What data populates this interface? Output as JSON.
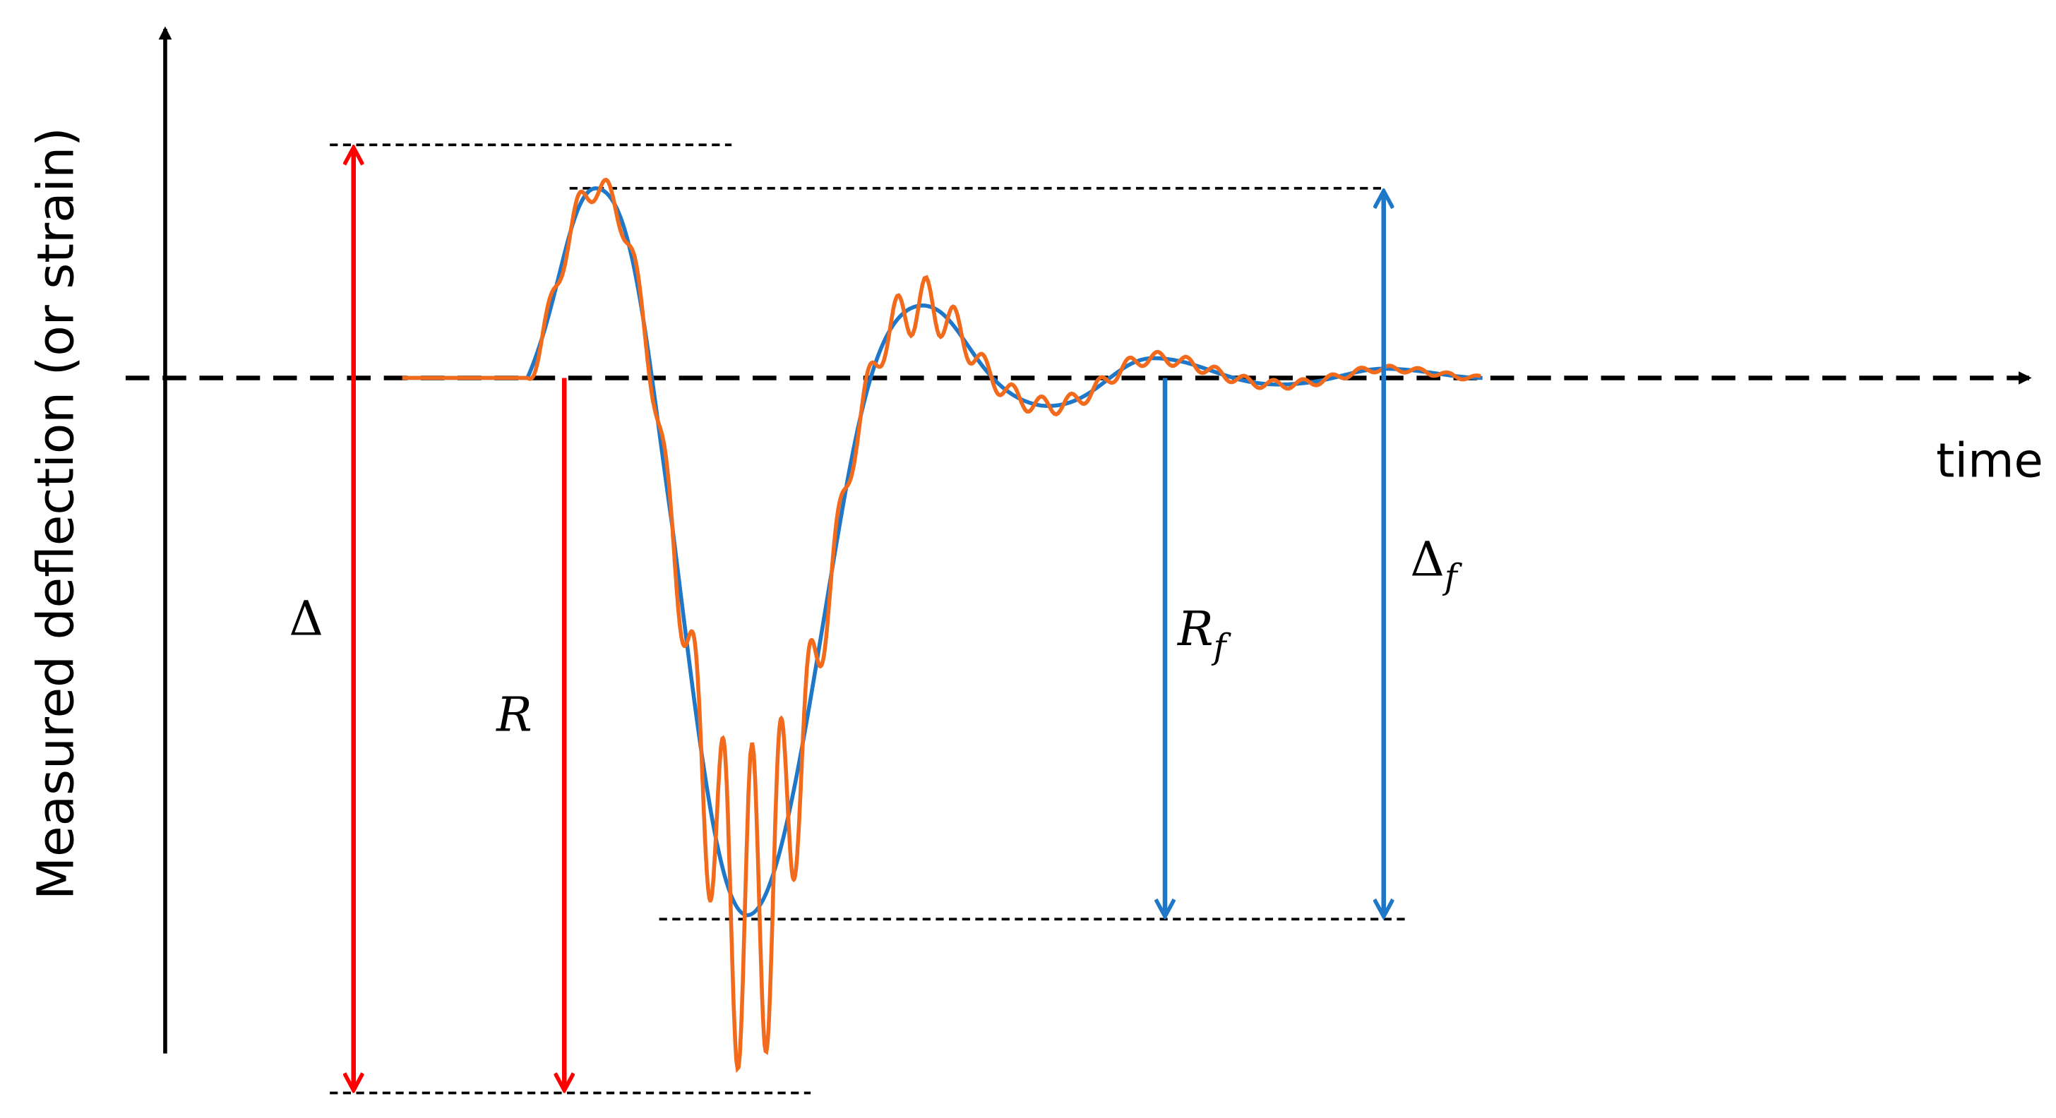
{
  "axes": {
    "y_label": "Measured deflection (or strain)",
    "x_label": "time"
  },
  "annotations": [
    {
      "label": "Δ"
    },
    {
      "label": "R"
    },
    {
      "label": "R",
      "subscript": "f"
    },
    {
      "label": "Δ",
      "subscript": "f"
    }
  ]
}
